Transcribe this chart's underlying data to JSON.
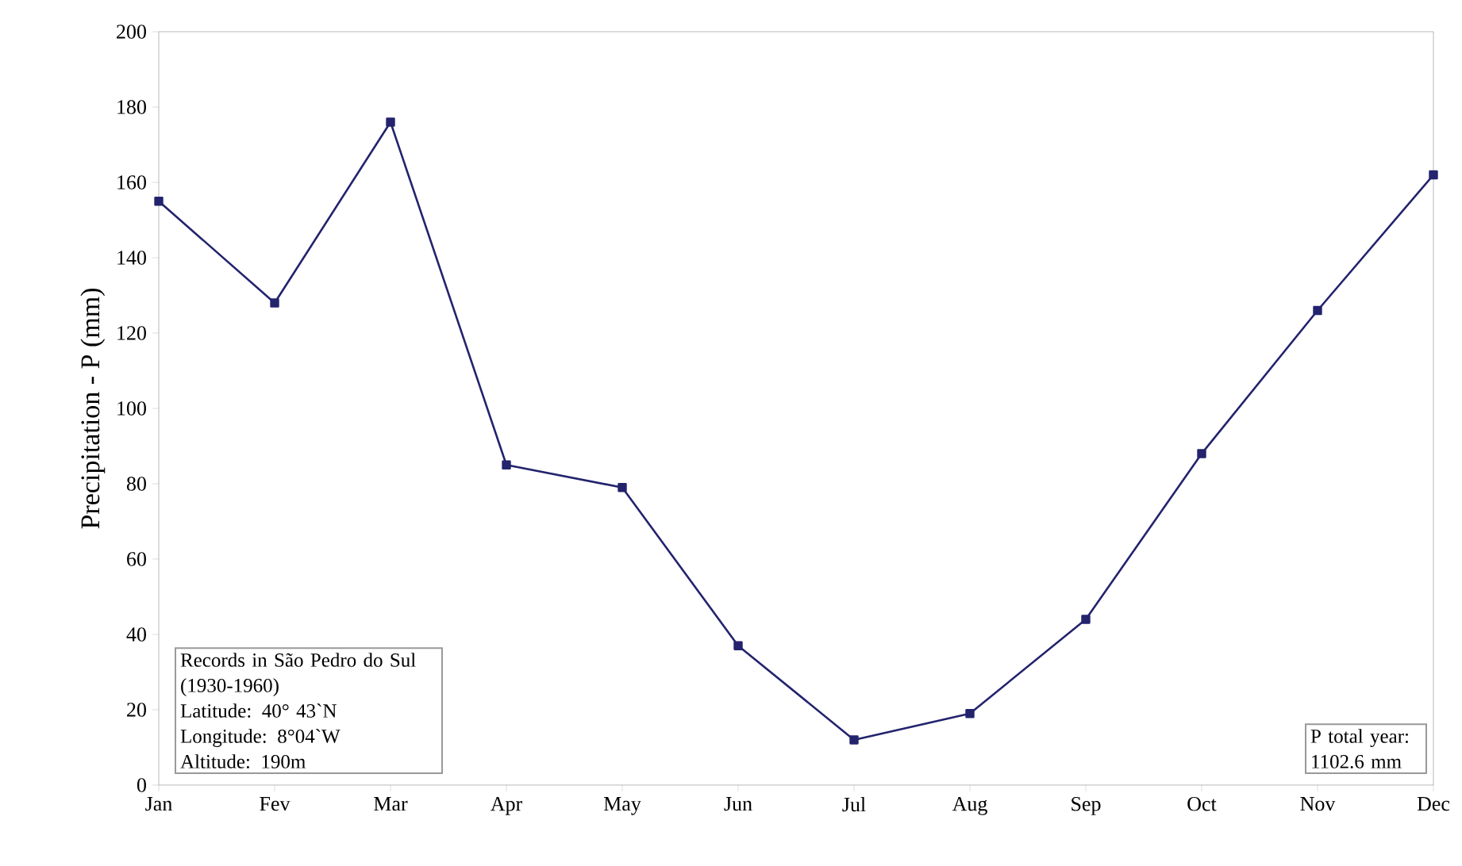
{
  "chart_data": {
    "type": "line",
    "ylabel": "Precipitation - P (mm)",
    "categories": [
      "Jan",
      "Fev",
      "Mar",
      "Apr",
      "May",
      "Jun",
      "Jul",
      "Aug",
      "Sep",
      "Oct",
      "Nov",
      "Dec"
    ],
    "series": [
      {
        "color": "#23236e",
        "values": [
          155,
          128,
          176,
          85,
          79,
          37,
          12,
          19,
          44,
          88,
          126,
          162
        ]
      }
    ],
    "ylim": [
      0,
      200
    ],
    "yticks": [
      0,
      20,
      40,
      60,
      80,
      100,
      120,
      140,
      160,
      180,
      200
    ],
    "marker": "square",
    "line_style": "solid",
    "annotations": [
      "Records in São Pedro do Sul\n(1930-1960)\n    Latitude: 40° 43`N\n    Longitude:  8°04`W\n  Altitude:  190m",
      "P total year:\n 1102.6 mm"
    ]
  }
}
